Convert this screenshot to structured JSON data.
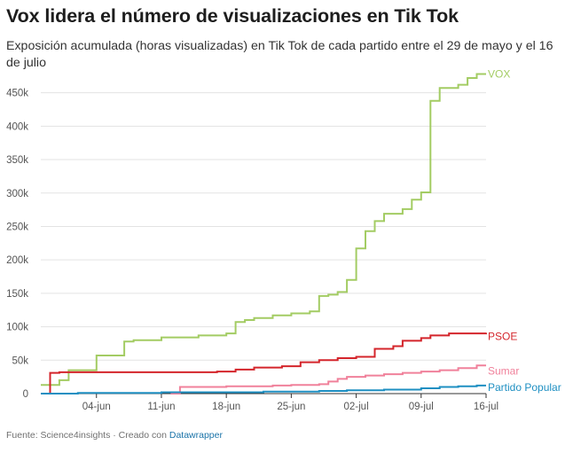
{
  "title": "Vox lidera el número de visualizaciones en Tik Tok",
  "subtitle": "Exposición acumulada (horas visualizadas) en Tik Tok de cada partido entre el 29 de mayo y el 16 de julio",
  "footer": {
    "source": "Fuente: Science4insights · Creado con ",
    "tool": "Datawrapper"
  },
  "chart_data": {
    "type": "line",
    "step": true,
    "x_unit": "date",
    "x_start": "2023-05-29",
    "x_end": "2023-07-16",
    "xlim": [
      1,
      49
    ],
    "ylim": [
      0,
      480000
    ],
    "x_ticks": [
      {
        "x": 7,
        "label": "04-jun"
      },
      {
        "x": 14,
        "label": "11-jun"
      },
      {
        "x": 21,
        "label": "18-jun"
      },
      {
        "x": 28,
        "label": "25-jun"
      },
      {
        "x": 35,
        "label": "02-jul"
      },
      {
        "x": 42,
        "label": "09-jul"
      },
      {
        "x": 49,
        "label": "16-jul"
      }
    ],
    "y_ticks": [
      {
        "y": 0,
        "label": "0"
      },
      {
        "y": 50000,
        "label": "50k"
      },
      {
        "y": 100000,
        "label": "100k"
      },
      {
        "y": 150000,
        "label": "150k"
      },
      {
        "y": 200000,
        "label": "200k"
      },
      {
        "y": 250000,
        "label": "250k"
      },
      {
        "y": 300000,
        "label": "300k"
      },
      {
        "y": 350000,
        "label": "350k"
      },
      {
        "y": 400000,
        "label": "400k"
      },
      {
        "y": 450000,
        "label": "450k"
      }
    ],
    "grid": true,
    "series": [
      {
        "name": "VOX",
        "color": "#a3cc63",
        "points": [
          [
            1,
            13000
          ],
          [
            3,
            13000
          ],
          [
            3,
            20000
          ],
          [
            4,
            20000
          ],
          [
            4,
            35000
          ],
          [
            7,
            35000
          ],
          [
            7,
            57000
          ],
          [
            10,
            57000
          ],
          [
            10,
            78000
          ],
          [
            11,
            78000
          ],
          [
            11,
            80000
          ],
          [
            14,
            80000
          ],
          [
            14,
            84000
          ],
          [
            18,
            84000
          ],
          [
            18,
            87000
          ],
          [
            21,
            87000
          ],
          [
            21,
            90000
          ],
          [
            22,
            90000
          ],
          [
            22,
            107000
          ],
          [
            23,
            107000
          ],
          [
            23,
            110000
          ],
          [
            24,
            110000
          ],
          [
            24,
            113000
          ],
          [
            26,
            113000
          ],
          [
            26,
            117000
          ],
          [
            28,
            117000
          ],
          [
            28,
            120000
          ],
          [
            30,
            120000
          ],
          [
            30,
            123000
          ],
          [
            31,
            123000
          ],
          [
            31,
            146000
          ],
          [
            32,
            146000
          ],
          [
            32,
            148000
          ],
          [
            33,
            148000
          ],
          [
            33,
            152000
          ],
          [
            34,
            152000
          ],
          [
            34,
            170000
          ],
          [
            35,
            170000
          ],
          [
            35,
            217000
          ],
          [
            36,
            217000
          ],
          [
            36,
            243000
          ],
          [
            37,
            243000
          ],
          [
            37,
            258000
          ],
          [
            38,
            258000
          ],
          [
            38,
            269000
          ],
          [
            40,
            269000
          ],
          [
            40,
            276000
          ],
          [
            41,
            276000
          ],
          [
            41,
            290000
          ],
          [
            42,
            290000
          ],
          [
            42,
            301000
          ],
          [
            43,
            301000
          ],
          [
            43,
            438000
          ],
          [
            44,
            438000
          ],
          [
            44,
            457000
          ],
          [
            46,
            457000
          ],
          [
            46,
            462000
          ],
          [
            47,
            462000
          ],
          [
            47,
            472000
          ],
          [
            48,
            472000
          ],
          [
            48,
            478000
          ],
          [
            49,
            478000
          ]
        ]
      },
      {
        "name": "PSOE",
        "color": "#d4252b",
        "points": [
          [
            1,
            0
          ],
          [
            2,
            0
          ],
          [
            2,
            31000
          ],
          [
            3,
            31000
          ],
          [
            3,
            32000
          ],
          [
            20,
            32000
          ],
          [
            20,
            33000
          ],
          [
            22,
            33000
          ],
          [
            22,
            36000
          ],
          [
            24,
            36000
          ],
          [
            24,
            39000
          ],
          [
            27,
            39000
          ],
          [
            27,
            41000
          ],
          [
            29,
            41000
          ],
          [
            29,
            47000
          ],
          [
            31,
            47000
          ],
          [
            31,
            50000
          ],
          [
            33,
            50000
          ],
          [
            33,
            53000
          ],
          [
            35,
            53000
          ],
          [
            35,
            55000
          ],
          [
            37,
            55000
          ],
          [
            37,
            67000
          ],
          [
            39,
            67000
          ],
          [
            39,
            71000
          ],
          [
            40,
            71000
          ],
          [
            40,
            79000
          ],
          [
            42,
            79000
          ],
          [
            42,
            83000
          ],
          [
            43,
            83000
          ],
          [
            43,
            87000
          ],
          [
            45,
            87000
          ],
          [
            45,
            90000
          ],
          [
            49,
            90000
          ],
          [
            49,
            91000
          ]
        ]
      },
      {
        "name": "Sumar",
        "color": "#f0819b",
        "points": [
          [
            15,
            0
          ],
          [
            16,
            0
          ],
          [
            16,
            10000
          ],
          [
            21,
            10000
          ],
          [
            21,
            11000
          ],
          [
            26,
            11000
          ],
          [
            26,
            12000
          ],
          [
            28,
            12000
          ],
          [
            28,
            13000
          ],
          [
            31,
            13000
          ],
          [
            31,
            14000
          ],
          [
            32,
            14000
          ],
          [
            32,
            18000
          ],
          [
            33,
            18000
          ],
          [
            33,
            22000
          ],
          [
            34,
            22000
          ],
          [
            34,
            25000
          ],
          [
            36,
            25000
          ],
          [
            36,
            27000
          ],
          [
            38,
            27000
          ],
          [
            38,
            29000
          ],
          [
            40,
            29000
          ],
          [
            40,
            31000
          ],
          [
            42,
            31000
          ],
          [
            42,
            33000
          ],
          [
            44,
            33000
          ],
          [
            44,
            35000
          ],
          [
            46,
            35000
          ],
          [
            46,
            38000
          ],
          [
            48,
            38000
          ],
          [
            48,
            42000
          ],
          [
            49,
            42000
          ]
        ]
      },
      {
        "name": "Partido Popular",
        "color": "#1e8fc2",
        "points": [
          [
            1,
            0
          ],
          [
            5,
            0
          ],
          [
            5,
            1000
          ],
          [
            14,
            1000
          ],
          [
            14,
            2000
          ],
          [
            25,
            2000
          ],
          [
            25,
            3000
          ],
          [
            31,
            3000
          ],
          [
            31,
            4000
          ],
          [
            34,
            4000
          ],
          [
            34,
            5000
          ],
          [
            38,
            5000
          ],
          [
            38,
            6000
          ],
          [
            42,
            6000
          ],
          [
            42,
            8000
          ],
          [
            44,
            8000
          ],
          [
            44,
            10000
          ],
          [
            46,
            10000
          ],
          [
            46,
            11000
          ],
          [
            48,
            11000
          ],
          [
            48,
            12000
          ],
          [
            49,
            12000
          ]
        ]
      }
    ]
  }
}
